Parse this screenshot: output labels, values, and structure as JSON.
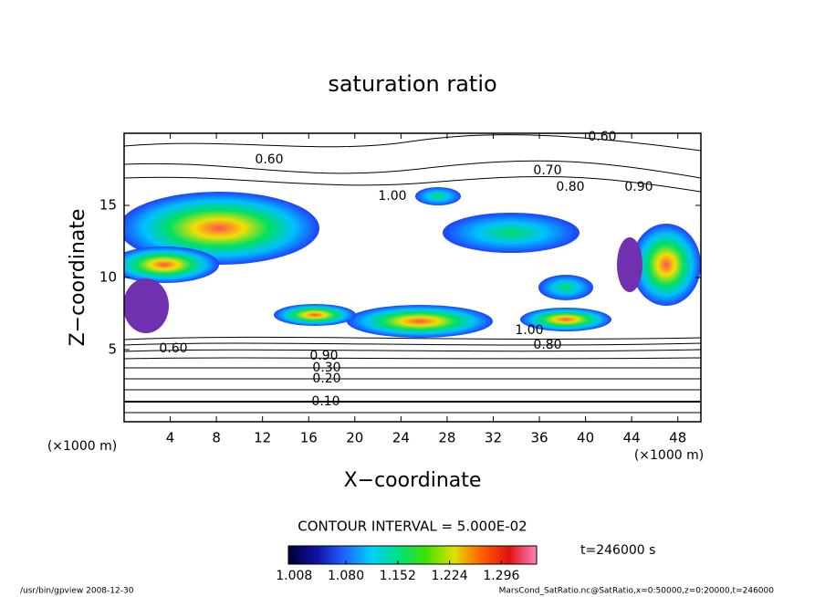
{
  "chart_data": {
    "type": "contour",
    "title": "saturation ratio",
    "x_label": "X−coordinate",
    "y_label": "Z−coordinate",
    "x_unit": "(×1000 m)",
    "y_unit": "(×1000 m)",
    "xlim": [
      0,
      50
    ],
    "xticks": [
      4,
      8,
      12,
      16,
      20,
      24,
      28,
      32,
      36,
      40,
      44,
      48
    ],
    "ylim": [
      0,
      20
    ],
    "yticks": [
      5,
      10,
      15
    ],
    "contour_interval": "CONTOUR INTERVAL = 5.000E-02",
    "contour_labels": [
      {
        "value": 0.1,
        "label": "0.10"
      },
      {
        "value": 0.2,
        "label": "0.20"
      },
      {
        "value": 0.3,
        "label": "0.30"
      },
      {
        "value": 0.9,
        "label": "0.90"
      },
      {
        "value": 0.6,
        "label": "0.60"
      },
      {
        "value": 0.6,
        "label": "0.60"
      },
      {
        "value": 0.6,
        "label": "0.60"
      },
      {
        "value": 0.7,
        "label": "0.70"
      },
      {
        "value": 0.8,
        "label": "0.80"
      },
      {
        "value": 0.9,
        "label": "0.90"
      },
      {
        "value": 1.0,
        "label": "1.00"
      },
      {
        "value": 1.0,
        "label": "1.00"
      },
      {
        "value": 0.8,
        "label": "0.80"
      }
    ],
    "colorbar": {
      "clim": [
        1.0,
        1.345
      ],
      "ticks": [
        {
          "value": 1.008,
          "label": "1.008"
        },
        {
          "value": 1.08,
          "label": "1.080"
        },
        {
          "value": 1.152,
          "label": "1.152"
        },
        {
          "value": 1.224,
          "label": "1.224"
        },
        {
          "value": 1.296,
          "label": "1.296"
        }
      ],
      "colormap": [
        "#000033",
        "#1010a0",
        "#2060ff",
        "#00d0ff",
        "#00e080",
        "#40e000",
        "#e0e000",
        "#ff6000",
        "#e01010",
        "#ff80c0"
      ]
    },
    "time_label": "t=246000 s",
    "footer_left": "/usr/bin/gpview   2008-12-30",
    "footer_right": "MarsCond_SatRatio.nc@SatRatio,x=0:50000,z=0:20000,t=246000"
  }
}
